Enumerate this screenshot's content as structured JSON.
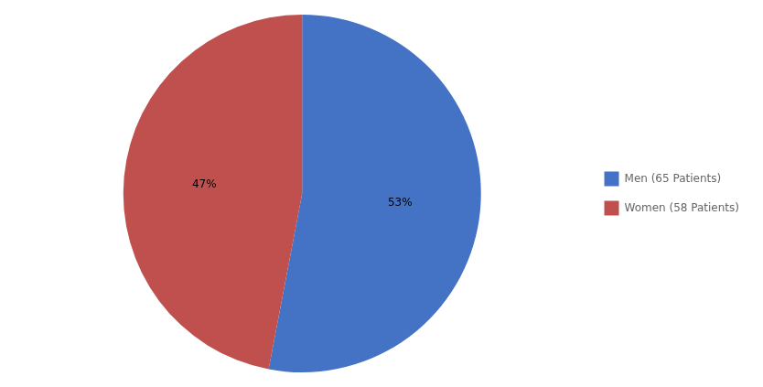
{
  "chart_data": {
    "type": "pie",
    "categories": [
      "Men (65 Patients)",
      "Women (58 Patients)"
    ],
    "values": [
      53,
      47
    ],
    "value_labels": [
      "53%",
      "47%"
    ],
    "colors": [
      "#4472C4",
      "#C0504D"
    ],
    "data_labels": true,
    "legend": "right"
  }
}
